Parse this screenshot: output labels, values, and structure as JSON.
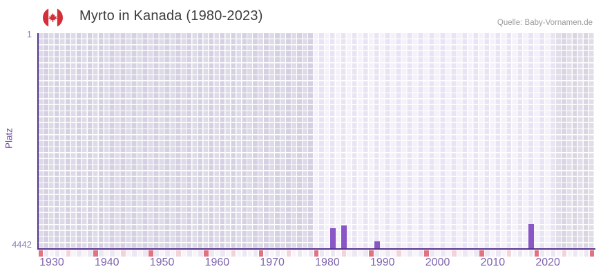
{
  "header": {
    "title": "Myrto in Kanada (1980-2023)",
    "source": "Quelle: Baby-Vornamen.de",
    "flag_icon": "canada-flag-icon"
  },
  "chart_data": {
    "type": "bar",
    "title": "Myrto in Kanada (1980-2023)",
    "ylabel": "Platz",
    "y_axis": {
      "min": 1,
      "max": 4442,
      "top_label": "1",
      "bottom_label": "4442",
      "inverted": true
    },
    "x_axis": {
      "start_year": 1928,
      "end_year": 2028,
      "tick_years": [
        1930,
        1940,
        1950,
        1960,
        1970,
        1980,
        1990,
        2000,
        2010,
        2020
      ]
    },
    "bars": [
      {
        "year": 1981,
        "rank": 4015
      },
      {
        "year": 1983,
        "rank": 3957
      },
      {
        "year": 1989,
        "rank": 4286
      },
      {
        "year": 2017,
        "rank": 3929
      }
    ],
    "regions": [
      {
        "name": "pre-window",
        "from": 1928,
        "to": 1977,
        "style": "shaded"
      },
      {
        "name": "data-window",
        "from": 1978,
        "to": 2021,
        "style": "plain"
      },
      {
        "name": "post-window",
        "from": 2022,
        "to": 2028,
        "style": "shaded-right"
      }
    ],
    "ruler": {
      "red_start": 1928,
      "pink_start": 1933,
      "step": 10
    },
    "grid": {
      "rows": 36,
      "legend": "one column per year"
    },
    "colors": {
      "bar": "#8956c6",
      "axis": "#53318c",
      "tick_label": "#7e64ae",
      "y_label": "#8a7db8",
      "y_title": "#6f51a5",
      "title_color": "#3d3d3d",
      "source_color": "#9c9c9c",
      "flag_red": "#d32f38",
      "region_shaded_a": "#dedbe9",
      "region_shaded_b": "#d5d1e2",
      "region_plain_a": "#f4f1fb",
      "region_plain_b": "#e8e4f3",
      "region_shaded_right_a": "#e1deea",
      "region_shaded_right_b": "#d9d6e3",
      "ruler_red": "#e0737f",
      "ruler_pink": "#f2d3da",
      "ruler_a": "#f8f4f9",
      "ruler_b": "#ebe7f3"
    }
  }
}
